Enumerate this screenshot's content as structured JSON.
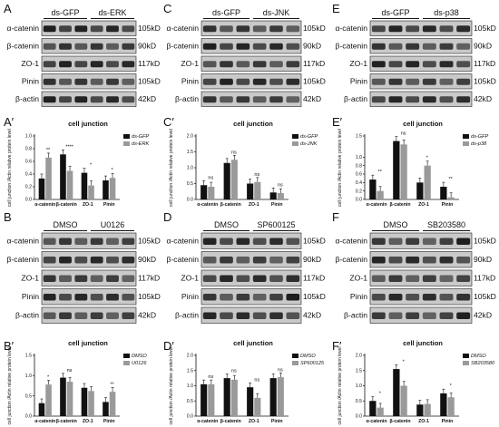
{
  "panels": [
    {
      "letter": "A",
      "groups": [
        "ds-GFP",
        "ds-ERK"
      ],
      "rows": [
        {
          "label": "α-catenin",
          "size": "105kD"
        },
        {
          "label": "β-catenin",
          "size": "90kD"
        },
        {
          "label": "ZO-1",
          "size": "117kD"
        },
        {
          "label": "Pinin",
          "size": "105kD"
        },
        {
          "label": "β-actin",
          "size": "42kD"
        }
      ]
    },
    {
      "letter": "C",
      "groups": [
        "ds-GFP",
        "ds-JNK"
      ],
      "rows": [
        {
          "label": "α-catenin",
          "size": "105kD"
        },
        {
          "label": "β-catenin",
          "size": "90kD"
        },
        {
          "label": "ZO-1",
          "size": "117kD"
        },
        {
          "label": "Pinin",
          "size": "105kD"
        },
        {
          "label": "β-actin",
          "size": "42kD"
        }
      ]
    },
    {
      "letter": "E",
      "groups": [
        "ds-GFP",
        "ds-p38"
      ],
      "rows": [
        {
          "label": "α-catenin",
          "size": "105kD"
        },
        {
          "label": "β-catenin",
          "size": "90kD"
        },
        {
          "label": "ZO-1",
          "size": "117kD"
        },
        {
          "label": "Pinin",
          "size": "105kD"
        },
        {
          "label": "β-actin",
          "size": "42kD"
        }
      ]
    },
    {
      "letter": "B",
      "groups": [
        "DMSO",
        "U0126"
      ],
      "rows": [
        {
          "label": "α-catenin",
          "size": "105kD"
        },
        {
          "label": "β-catenin",
          "size": "90kD"
        },
        {
          "label": "ZO-1",
          "size": "117kD"
        },
        {
          "label": "Pinin",
          "size": "105kD"
        },
        {
          "label": "β-actin",
          "size": "42kD"
        }
      ]
    },
    {
      "letter": "D",
      "groups": [
        "DMSO",
        "SP600125"
      ],
      "rows": [
        {
          "label": "α-catenin",
          "size": "105kD"
        },
        {
          "label": "β-catenin",
          "size": "90kD"
        },
        {
          "label": "ZO-1",
          "size": "117kD"
        },
        {
          "label": "Pinin",
          "size": "105kD"
        },
        {
          "label": "β-actin",
          "size": "42kD"
        }
      ]
    },
    {
      "letter": "F",
      "groups": [
        "DMSO",
        "SB203580"
      ],
      "rows": [
        {
          "label": "α-catenin",
          "size": "105kD"
        },
        {
          "label": "β-catenin",
          "size": "90kD"
        },
        {
          "label": "ZO-1",
          "size": "117kD"
        },
        {
          "label": "Pinin",
          "size": "105kD"
        },
        {
          "label": "β-actin",
          "size": "42kD"
        }
      ]
    }
  ],
  "chart_data": [
    {
      "letter": "A′",
      "type": "bar",
      "title": "cell junction",
      "ylabel": "cell junction /Actin relative protein level",
      "categories": [
        "α-catenin",
        "β-catenin",
        "ZO-1",
        "Pinin"
      ],
      "ylim": [
        0.0,
        1.0
      ],
      "yticks": [
        "0.0",
        "0.2",
        "0.4",
        "0.6",
        "0.8",
        "1.0"
      ],
      "series": [
        {
          "name": "ds-GFP",
          "color": "#111111",
          "values": [
            0.33,
            0.71,
            0.42,
            0.3
          ]
        },
        {
          "name": "ds-ERK",
          "color": "#9a9a9a",
          "values": [
            0.66,
            0.45,
            0.22,
            0.34
          ]
        }
      ],
      "annotations": [
        "**",
        "****",
        "*",
        "*"
      ]
    },
    {
      "letter": "C′",
      "type": "bar",
      "title": "cell junction",
      "ylabel": "cell junction /Actin relative protein level",
      "categories": [
        "α-catenin",
        "β-catenin",
        "ZO-1",
        "Pinin"
      ],
      "ylim": [
        0.0,
        2.0
      ],
      "yticks": [
        "0.0",
        "0.5",
        "1.0",
        "1.5",
        "2.0"
      ],
      "series": [
        {
          "name": "ds-GFP",
          "color": "#111111",
          "values": [
            0.45,
            1.15,
            0.5,
            0.22
          ]
        },
        {
          "name": "ds-JNK",
          "color": "#9a9a9a",
          "values": [
            0.4,
            1.25,
            0.55,
            0.2
          ]
        }
      ],
      "annotations": [
        "ns",
        "ns",
        "ns",
        "ns"
      ]
    },
    {
      "letter": "E′",
      "type": "bar",
      "title": "cell junction",
      "ylabel": "cell junction /Actin relative protein level",
      "categories": [
        "α-catenin",
        "β-catenin",
        "ZO-1",
        "Pinin"
      ],
      "ylim": [
        0.0,
        1.5
      ],
      "yticks": [
        "0.0",
        "0.2",
        "0.4",
        "0.6",
        "0.8",
        "1.0",
        "1.5"
      ],
      "series": [
        {
          "name": "ds-GFP",
          "color": "#111111",
          "values": [
            0.47,
            1.38,
            0.4,
            0.3
          ]
        },
        {
          "name": "ds-p38",
          "color": "#9a9a9a",
          "values": [
            0.2,
            1.3,
            0.8,
            0.05
          ]
        }
      ],
      "annotations": [
        "**",
        "ns",
        "*",
        "**"
      ]
    },
    {
      "letter": "B′",
      "type": "bar",
      "title": "cell junction",
      "ylabel": "cell junction /Actin relative protein level",
      "categories": [
        "α-catenin",
        "β-catenin",
        "ZO-1",
        "Pinin"
      ],
      "ylim": [
        0.0,
        1.5
      ],
      "yticks": [
        "0.0",
        "0.5",
        "1.0",
        "1.5"
      ],
      "series": [
        {
          "name": "DMSO",
          "color": "#111111",
          "values": [
            0.32,
            0.95,
            0.7,
            0.35
          ]
        },
        {
          "name": "U0126",
          "color": "#9a9a9a",
          "values": [
            0.78,
            0.85,
            0.62,
            0.6
          ]
        }
      ],
      "annotations": [
        "*",
        "ns",
        "",
        "**"
      ]
    },
    {
      "letter": "D′",
      "type": "bar",
      "title": "cell junction",
      "ylabel": "cell junction /Actin relative protein level",
      "categories": [
        "α-catenin",
        "β-catenin",
        "ZO-1",
        "Pinin"
      ],
      "ylim": [
        0.0,
        2.0
      ],
      "yticks": [
        "0.0",
        "0.5",
        "1.0",
        "1.5",
        "2.0"
      ],
      "series": [
        {
          "name": "DMSO",
          "color": "#111111",
          "values": [
            1.05,
            1.25,
            0.95,
            1.25
          ]
        },
        {
          "name": "SP600125",
          "color": "#9a9a9a",
          "values": [
            1.05,
            1.2,
            0.6,
            1.28
          ]
        }
      ],
      "annotations": [
        "ns",
        "ns",
        "ns",
        "ns"
      ]
    },
    {
      "letter": "F′",
      "type": "bar",
      "title": "cell junction",
      "ylabel": "cell junction /Actin relative protein level",
      "categories": [
        "α-catenin",
        "β-catenin",
        "ZO-1",
        "Pinin"
      ],
      "ylim": [
        0.0,
        2.0
      ],
      "yticks": [
        "0.0",
        "0.5",
        "1.0",
        "1.5",
        "2.0"
      ],
      "series": [
        {
          "name": "DMSO",
          "color": "#111111",
          "values": [
            0.5,
            1.55,
            0.38,
            0.75
          ]
        },
        {
          "name": "SB203580",
          "color": "#9a9a9a",
          "values": [
            0.28,
            1.0,
            0.4,
            0.62
          ]
        }
      ],
      "annotations": [
        "*",
        "*",
        "",
        "*"
      ]
    }
  ]
}
